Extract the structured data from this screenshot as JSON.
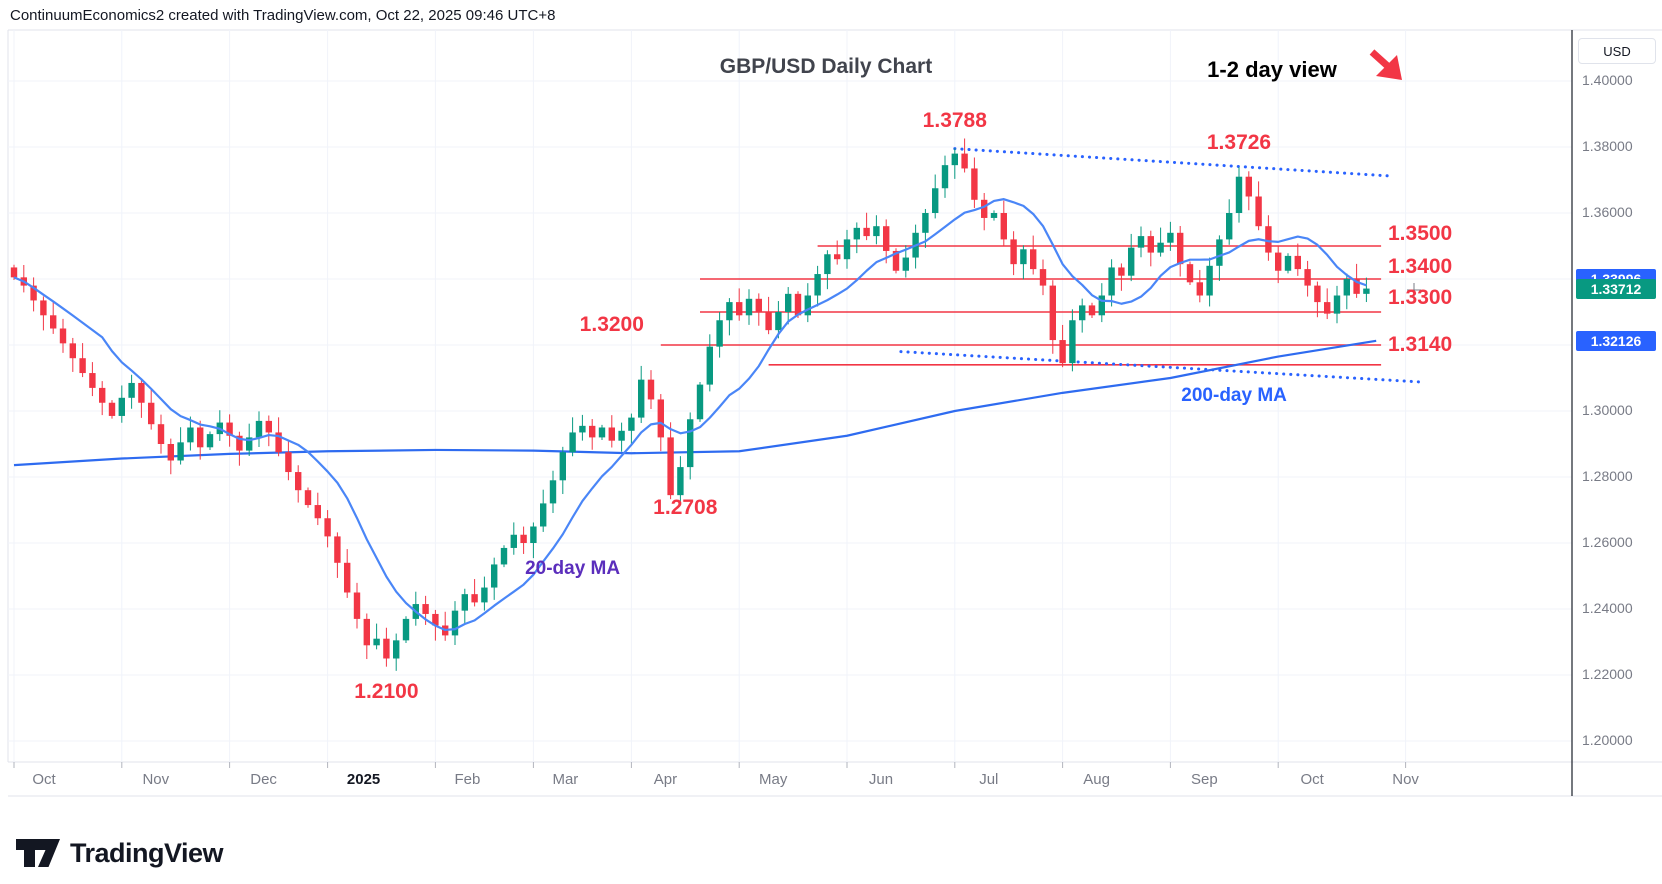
{
  "header": {
    "credit": "ContinuumEconomics2 created with TradingView.com, Oct 22, 2025 09:46 UTC+8"
  },
  "footer": {
    "brand": "TradingView"
  },
  "axis": {
    "currency_button": "USD",
    "price_ticks": [
      "1.40000",
      "1.38000",
      "1.36000",
      "1.34000",
      "1.32000",
      "1.30000",
      "1.28000",
      "1.26000",
      "1.24000",
      "1.22000",
      "1.20000"
    ],
    "price_tick_values": [
      1.4,
      1.38,
      1.36,
      1.34,
      1.32,
      1.3,
      1.28,
      1.26,
      1.24,
      1.22,
      1.2
    ],
    "months": [
      {
        "label": "Oct",
        "day": 0,
        "dx": 30
      },
      {
        "label": "Nov",
        "day": 22,
        "dx": 34
      },
      {
        "label": "Dec",
        "day": 44,
        "dx": 34
      },
      {
        "label": "2025",
        "day": 64,
        "dx": 36,
        "bold": true
      },
      {
        "label": "Feb",
        "day": 86,
        "dx": 32
      },
      {
        "label": "Mar",
        "day": 106,
        "dx": 32
      },
      {
        "label": "Apr",
        "day": 126,
        "dx": 34
      },
      {
        "label": "May",
        "day": 148,
        "dx": 34
      },
      {
        "label": "Jun",
        "day": 170,
        "dx": 34
      },
      {
        "label": "Jul",
        "day": 192,
        "dx": 34
      },
      {
        "label": "Aug",
        "day": 214,
        "dx": 34
      },
      {
        "label": "Sep",
        "day": 236,
        "dx": 34
      },
      {
        "label": "Oct",
        "day": 258,
        "dx": 34
      },
      {
        "label": "Nov",
        "day": 284,
        "dx": 0
      }
    ]
  },
  "badges": [
    {
      "name": "ma20-price-badge",
      "value": "1.33996",
      "price": 1.33996,
      "color": "#2962ff"
    },
    {
      "name": "last-price-badge",
      "value": "1.33712",
      "price": 1.33712,
      "color": "#089981"
    },
    {
      "name": "ma200-price-badge",
      "value": "1.32126",
      "price": 1.32126,
      "color": "#2962ff"
    }
  ],
  "chart_data": {
    "type": "candlestick",
    "symbol": "GBP/USD",
    "timeframe": "Daily",
    "title": "GBP/USD Daily Chart",
    "view_note": "1-2 day view",
    "ylabel": "USD",
    "ylim": [
      1.195,
      1.415
    ],
    "grid": true,
    "day_step": 2,
    "closes": [
      1.3405,
      1.338,
      1.3335,
      1.329,
      1.325,
      1.3205,
      1.316,
      1.3115,
      1.307,
      1.3025,
      1.2985,
      1.304,
      1.3085,
      1.3025,
      1.296,
      1.29,
      1.285,
      1.2905,
      1.295,
      1.289,
      1.293,
      1.2965,
      1.2925,
      1.288,
      1.292,
      1.297,
      1.2935,
      1.2875,
      1.2815,
      1.276,
      1.2715,
      1.2675,
      1.262,
      1.254,
      1.245,
      1.237,
      1.229,
      1.231,
      1.225,
      1.2305,
      1.237,
      1.2415,
      1.2385,
      1.235,
      1.232,
      1.2395,
      1.2445,
      1.242,
      1.2465,
      1.2535,
      1.2585,
      1.2625,
      1.26,
      1.265,
      1.272,
      1.279,
      1.2875,
      1.2935,
      1.2955,
      1.292,
      1.295,
      1.291,
      1.294,
      1.298,
      1.3095,
      1.3035,
      1.292,
      1.2745,
      1.283,
      1.2975,
      1.308,
      1.3195,
      1.3275,
      1.333,
      1.329,
      1.334,
      1.33,
      1.3245,
      1.33,
      1.3355,
      1.329,
      1.335,
      1.3415,
      1.3475,
      1.346,
      1.352,
      1.3555,
      1.353,
      1.356,
      1.3485,
      1.3425,
      1.3465,
      1.354,
      1.36,
      1.3675,
      1.3745,
      1.378,
      1.3735,
      1.364,
      1.3585,
      1.36,
      1.352,
      1.3445,
      1.349,
      1.343,
      1.338,
      1.3215,
      1.3145,
      1.3275,
      1.332,
      1.329,
      1.335,
      1.3435,
      1.341,
      1.3495,
      1.353,
      1.348,
      1.351,
      1.354,
      1.3445,
      1.339,
      1.335,
      1.344,
      1.352,
      1.36,
      1.371,
      1.365,
      1.356,
      1.348,
      1.3425,
      1.347,
      1.343,
      1.338,
      1.333,
      1.3295,
      1.335,
      1.34,
      1.3355,
      1.3371
    ],
    "ma20_window": 10,
    "ma200_path": [
      [
        0,
        1.2836
      ],
      [
        22,
        1.2856
      ],
      [
        44,
        1.287
      ],
      [
        64,
        1.2878
      ],
      [
        86,
        1.2882
      ],
      [
        106,
        1.288
      ],
      [
        126,
        1.2872
      ],
      [
        148,
        1.2878
      ],
      [
        170,
        1.2925
      ],
      [
        192,
        1.3
      ],
      [
        214,
        1.3055
      ],
      [
        236,
        1.31
      ],
      [
        258,
        1.3165
      ],
      [
        278,
        1.32126
      ]
    ],
    "levels": [
      {
        "label": "1.3500",
        "price": 1.35,
        "d0": 164,
        "d1": 279,
        "label_dy": -12
      },
      {
        "label": "1.3400",
        "price": 1.34,
        "d0": 140,
        "d1": 279,
        "label_dy": -12
      },
      {
        "label": "1.3300",
        "price": 1.33,
        "d0": 140,
        "d1": 279,
        "label_dy": -14
      },
      {
        "label": "1.3200",
        "price": 1.32,
        "d0": 132,
        "d1": 279,
        "label_side": "left"
      },
      {
        "label": "1.3140",
        "price": 1.314,
        "d0": 154,
        "d1": 279,
        "label_dy": -20
      }
    ],
    "trendlines": [
      {
        "name": "upper-dotted-trendline",
        "from": [
          192,
          1.3795
        ],
        "to": [
          281,
          1.3712
        ]
      },
      {
        "name": "lower-dotted-trendline",
        "from": [
          181,
          1.318
        ],
        "to": [
          287,
          1.3088
        ]
      }
    ],
    "annotations": [
      {
        "label": "1.3788",
        "day": 192,
        "price": 1.388,
        "kind": "price"
      },
      {
        "label": "1.3726",
        "day": 250,
        "price": 1.3812,
        "kind": "price"
      },
      {
        "label": "1.2708",
        "day": 137,
        "price": 1.2705,
        "kind": "price"
      },
      {
        "label": "1.2100",
        "day": 76,
        "price": 1.215,
        "kind": "price"
      },
      {
        "label": "1.3200",
        "day": 122,
        "price": 1.3262,
        "kind": "price"
      },
      {
        "label": "20-day MA",
        "day": 114,
        "price": 1.252,
        "color": "#5b2ebc",
        "kind": "ma"
      },
      {
        "label": "200-day MA",
        "day": 249,
        "price": 1.3045,
        "color": "#2962ff",
        "kind": "ma"
      }
    ],
    "colors": {
      "up": "#089981",
      "down": "#f23645",
      "level": "#f23645",
      "annotation": "#f23645",
      "ma20": "#4a86f7",
      "ma200": "#2e6bf0",
      "trendline": "#2962ff",
      "grid": "#f0f3fa",
      "axis_text": "#787b86",
      "separator": "#3a3e47",
      "border": "#e0e3eb",
      "arrow": "#f23645"
    }
  }
}
